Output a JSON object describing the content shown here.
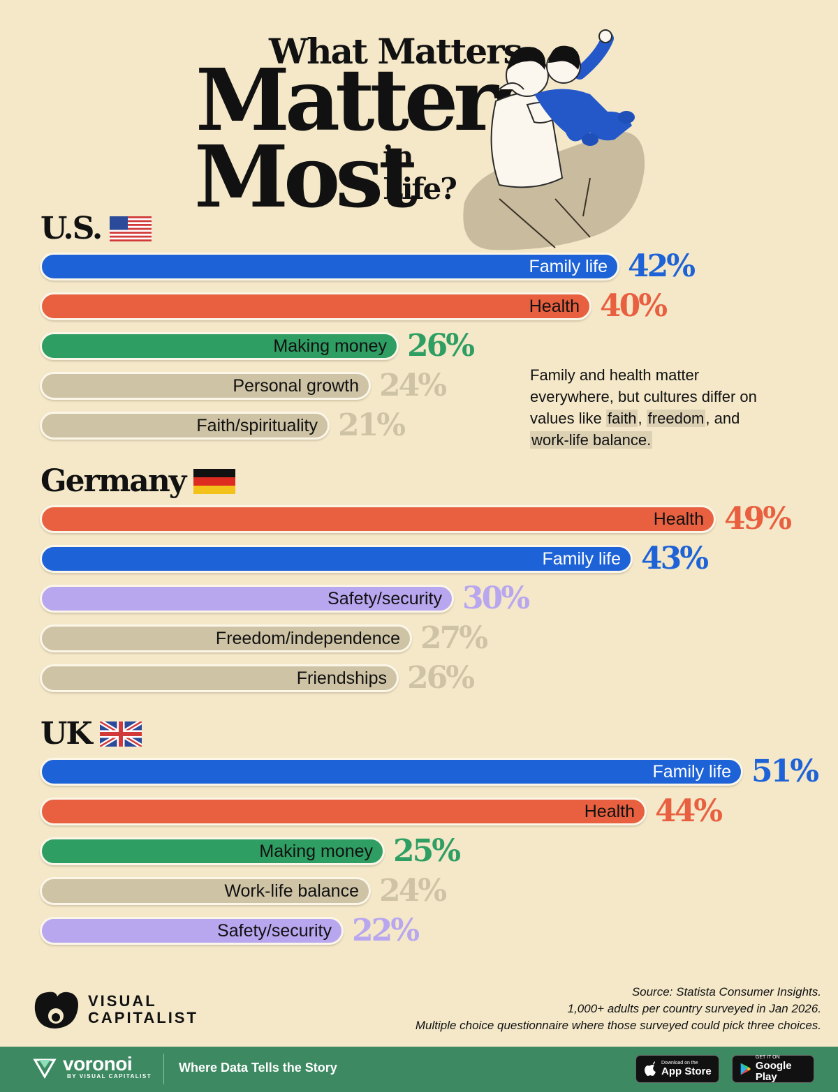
{
  "title": {
    "line1": "What Matters",
    "line2": "Matters",
    "line3": "Most",
    "line4a": "in",
    "line4b": "Life?"
  },
  "colors": {
    "background": "#f4e8c9",
    "family": "#1d62d6",
    "health": "#e8603f",
    "money": "#2e9e63",
    "safety": "#b8a6ef",
    "other": "#cfc3a5"
  },
  "annotation": {
    "pre": "Family and health matter everywhere, but cultures differ on values like ",
    "hl1": "faith",
    "sep1": ", ",
    "hl2": "freedom",
    "sep2": ",",
    "mid": " and ",
    "hl3": "work-life balance."
  },
  "chart_data": [
    {
      "type": "bar",
      "title": "U.S.",
      "categories": [
        "Family life",
        "Health",
        "Making money",
        "Personal growth",
        "Faith/spirituality"
      ],
      "values": [
        42,
        40,
        26,
        24,
        21
      ],
      "value_labels": [
        "42%",
        "40%",
        "26%",
        "24%",
        "21%"
      ],
      "color_keys": [
        "family",
        "health",
        "money",
        "other",
        "other"
      ]
    },
    {
      "type": "bar",
      "title": "Germany",
      "categories": [
        "Health",
        "Family life",
        "Safety/security",
        "Freedom/independence",
        "Friendships"
      ],
      "values": [
        49,
        43,
        30,
        27,
        26
      ],
      "value_labels": [
        "49%",
        "43%",
        "30%",
        "27%",
        "26%"
      ],
      "color_keys": [
        "health",
        "family",
        "safety",
        "other",
        "other"
      ]
    },
    {
      "type": "bar",
      "title": "UK",
      "categories": [
        "Family life",
        "Health",
        "Making money",
        "Work-life balance",
        "Safety/security"
      ],
      "values": [
        51,
        44,
        25,
        24,
        22
      ],
      "value_labels": [
        "51%",
        "44%",
        "25%",
        "24%",
        "22%"
      ],
      "color_keys": [
        "family",
        "health",
        "money",
        "other",
        "safety"
      ]
    }
  ],
  "source": {
    "line1": "Source: Statista Consumer Insights.",
    "line2": "1,000+ adults per country surveyed in Jan 2026.",
    "line3": "Multiple choice questionnaire where those surveyed could pick three choices."
  },
  "brand": {
    "vc_line1": "VISUAL",
    "vc_line2": "CAPITALIST",
    "voronoi": "voronoi",
    "voronoi_sub": "BY VISUAL CAPITALIST",
    "tagline": "Where Data Tells the Story",
    "appstore_small": "Download on the",
    "appstore_big": "App Store",
    "googleplay_small": "GET IT ON",
    "googleplay_big": "Google Play"
  }
}
